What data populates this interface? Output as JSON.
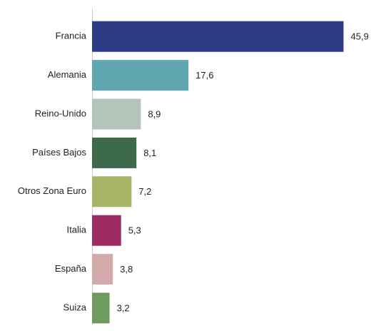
{
  "chart_data": {
    "type": "bar",
    "orientation": "horizontal",
    "categories": [
      "Francia",
      "Alemania",
      "Reino-Unido",
      "Países Bajos",
      "Otros Zona Euro",
      "Italia",
      "España",
      "Suiza"
    ],
    "values": [
      45.9,
      17.6,
      8.9,
      8.1,
      7.2,
      5.3,
      3.8,
      3.2
    ],
    "value_labels": [
      "45,9",
      "17,6",
      "8,9",
      "8,1",
      "7,2",
      "5,3",
      "3,8",
      "3,2"
    ],
    "colors": [
      "#2e3b87",
      "#5fa6b0",
      "#b3c4bb",
      "#3d6a4a",
      "#a5b467",
      "#9e2c63",
      "#d4a9a9",
      "#6d9b62"
    ],
    "xlim": [
      0,
      50
    ]
  }
}
